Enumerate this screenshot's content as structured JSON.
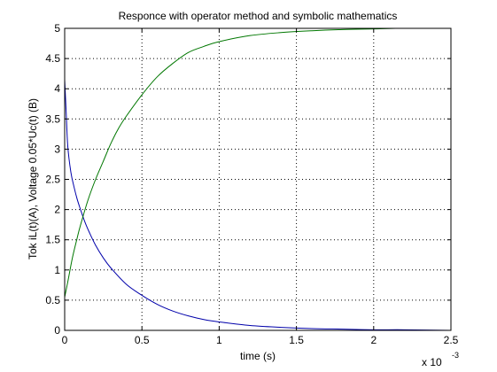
{
  "chart_data": {
    "type": "line",
    "title": "Responce with operator method and symbolic mathematics",
    "xlabel": "time (s)",
    "ylabel": "Tok iL(t)(A), Voltage 0.05*Uc(t) (B)",
    "x_exponent_label": "x 10",
    "x_exponent_power": "-3",
    "xlim": [
      0,
      2.5
    ],
    "ylim": [
      0,
      5
    ],
    "x_scale_factor": 0.001,
    "xticks": [
      0,
      0.5,
      1,
      1.5,
      2,
      2.5
    ],
    "xtick_labels": [
      "0",
      "0.5",
      "1",
      "1.5",
      "2",
      "2.5"
    ],
    "yticks": [
      0,
      0.5,
      1,
      1.5,
      2,
      2.5,
      3,
      3.5,
      4,
      4.5,
      5
    ],
    "ytick_labels": [
      "0",
      "0.5",
      "1",
      "1.5",
      "2",
      "2.5",
      "3",
      "3.5",
      "4",
      "4.5",
      "5"
    ],
    "grid": true,
    "series": [
      {
        "color": "#0000aa",
        "x": [
          0,
          0.01,
          0.02,
          0.04,
          0.06,
          0.08,
          0.1,
          0.13,
          0.16,
          0.2,
          0.25,
          0.3,
          0.4,
          0.5,
          0.6,
          0.7,
          0.8,
          0.9,
          1.0,
          1.2,
          1.4,
          1.6,
          1.8,
          2.0,
          2.2,
          2.5
        ],
        "y": [
          4.15,
          3.6,
          3.05,
          2.62,
          2.38,
          2.18,
          2.02,
          1.8,
          1.62,
          1.41,
          1.2,
          1.03,
          0.76,
          0.58,
          0.43,
          0.32,
          0.24,
          0.18,
          0.14,
          0.08,
          0.05,
          0.03,
          0.02,
          0.01,
          0.01,
          0.0
        ]
      },
      {
        "color": "#007700",
        "x": [
          0,
          0.02,
          0.05,
          0.08,
          0.1,
          0.15,
          0.2,
          0.25,
          0.3,
          0.35,
          0.4,
          0.5,
          0.6,
          0.7,
          0.8,
          0.9,
          1.0,
          1.2,
          1.4,
          1.6,
          1.8,
          2.0,
          2.14
        ],
        "y": [
          0.55,
          0.8,
          1.2,
          1.52,
          1.72,
          2.15,
          2.5,
          2.8,
          3.1,
          3.35,
          3.55,
          3.9,
          4.2,
          4.42,
          4.6,
          4.7,
          4.78,
          4.88,
          4.93,
          4.96,
          4.98,
          4.99,
          5.0
        ]
      }
    ]
  }
}
